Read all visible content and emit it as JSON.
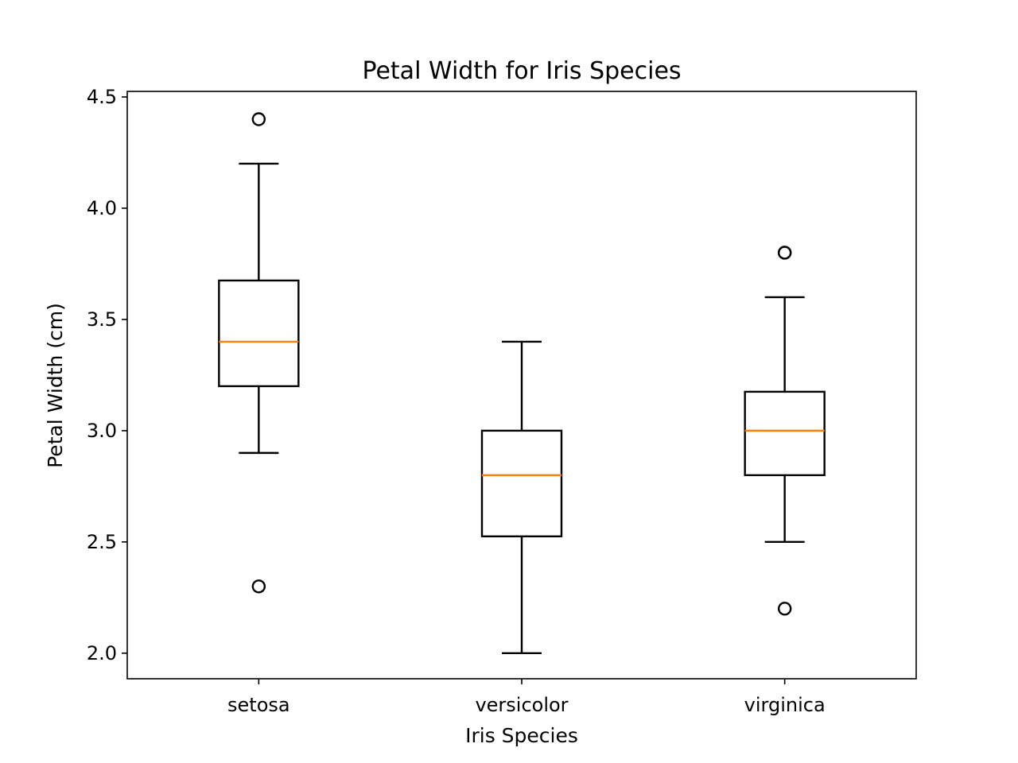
{
  "chart_data": {
    "type": "box",
    "title": "Petal Width for Iris Species",
    "xlabel": "Iris Species",
    "ylabel": "Petal Width (cm)",
    "ylim": [
      1.885,
      4.525
    ],
    "yticks": [
      2.0,
      2.5,
      3.0,
      3.5,
      4.0,
      4.5
    ],
    "ytick_labels": [
      "2.0",
      "2.5",
      "3.0",
      "3.5",
      "4.0",
      "4.5"
    ],
    "categories": [
      "setosa",
      "versicolor",
      "virginica"
    ],
    "grid": false,
    "legend": "none",
    "colors": {
      "box": "#000000",
      "median": "#ff7f0e",
      "outlier": "#000000"
    },
    "series": [
      {
        "category": "setosa",
        "whisker_low": 2.9,
        "q1": 3.2,
        "median": 3.4,
        "q3": 3.675,
        "whisker_high": 4.2,
        "outliers": [
          4.4,
          2.3
        ]
      },
      {
        "category": "versicolor",
        "whisker_low": 2.0,
        "q1": 2.525,
        "median": 2.8,
        "q3": 3.0,
        "whisker_high": 3.4,
        "outliers": []
      },
      {
        "category": "virginica",
        "whisker_low": 2.5,
        "q1": 2.8,
        "median": 3.0,
        "q3": 3.175,
        "whisker_high": 3.6,
        "outliers": [
          3.8,
          3.8,
          2.2
        ]
      }
    ]
  }
}
